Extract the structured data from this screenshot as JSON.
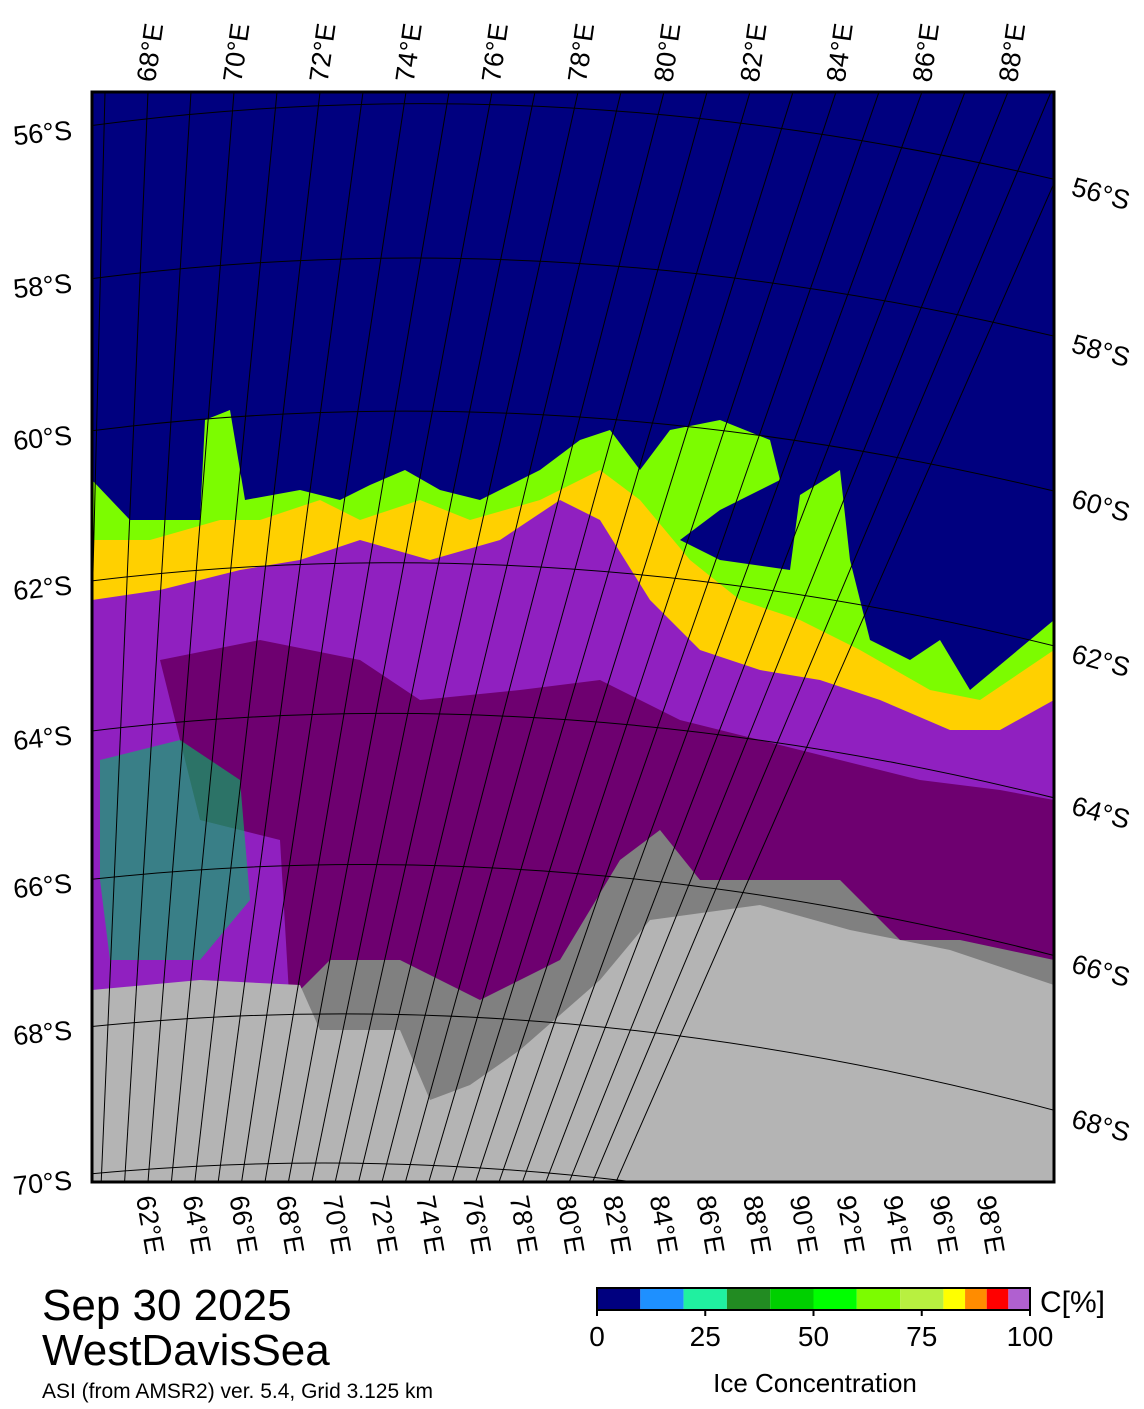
{
  "map": {
    "top_lon_labels": [
      "68°E",
      "70°E",
      "72°E",
      "74°E",
      "76°E",
      "78°E",
      "80°E",
      "82°E",
      "84°E",
      "86°E",
      "88°E"
    ],
    "bottom_lon_labels": [
      "62°E",
      "64°E",
      "66°E",
      "68°E",
      "70°E",
      "72°E",
      "74°E",
      "76°E",
      "78°E",
      "80°E",
      "82°E",
      "84°E",
      "86°E",
      "88°E",
      "90°E",
      "92°E",
      "94°E",
      "96°E",
      "98°E"
    ],
    "left_lat_labels": [
      "56°S",
      "58°S",
      "60°S",
      "62°S",
      "64°S",
      "66°S",
      "68°S",
      "70°S"
    ],
    "right_lat_labels": [
      "56°S",
      "58°S",
      "60°S",
      "62°S",
      "64°S",
      "66°S",
      "68°S"
    ]
  },
  "caption": {
    "date": "Sep 30 2025",
    "region": "WestDavisSea",
    "source": "ASI (from AMSR2) ver. 5.4,  Grid 3.125 km"
  },
  "colorbar": {
    "unit": "C[%]",
    "title": "Ice Concentration",
    "range": [
      0,
      100
    ],
    "ticks": [
      0,
      25,
      50,
      75,
      100
    ],
    "bounds": [
      0,
      10,
      20,
      30,
      40,
      50,
      60,
      70,
      80,
      85,
      90,
      95,
      100
    ],
    "colors": [
      "#00007f",
      "#1e90ff",
      "#20f0a0",
      "#228b22",
      "#00d000",
      "#00ff00",
      "#7cfc00",
      "#b8f040",
      "#ffff00",
      "#ff8c00",
      "#ff0000",
      "#b060d0",
      "#8000c0"
    ]
  }
}
